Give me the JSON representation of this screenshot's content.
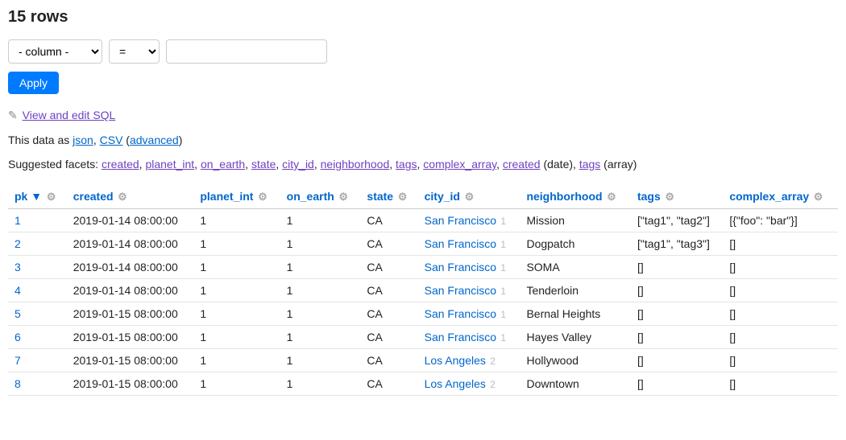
{
  "title": "15 rows",
  "filter": {
    "column_placeholder": "- column -",
    "operator": "=",
    "value": ""
  },
  "apply_label": "Apply",
  "sql_link": {
    "text": "View and edit SQL",
    "pencil": "✎"
  },
  "export": {
    "prefix": "This data as ",
    "json": "json",
    "csv": "CSV",
    "advanced": "advanced"
  },
  "facets": {
    "prefix": "Suggested facets: ",
    "items": [
      {
        "label": "created",
        "suffix": ""
      },
      {
        "label": "planet_int",
        "suffix": ""
      },
      {
        "label": "on_earth",
        "suffix": ""
      },
      {
        "label": "state",
        "suffix": ""
      },
      {
        "label": "city_id",
        "suffix": ""
      },
      {
        "label": "neighborhood",
        "suffix": ""
      },
      {
        "label": "tags",
        "suffix": ""
      },
      {
        "label": "complex_array",
        "suffix": ""
      },
      {
        "label": "created",
        "suffix": " (date)"
      },
      {
        "label": "tags",
        "suffix": " (array)"
      }
    ]
  },
  "columns": [
    {
      "name": "pk",
      "sorted": true
    },
    {
      "name": "created"
    },
    {
      "name": "planet_int"
    },
    {
      "name": "on_earth"
    },
    {
      "name": "state"
    },
    {
      "name": "city_id"
    },
    {
      "name": "neighborhood"
    },
    {
      "name": "tags"
    },
    {
      "name": "complex_array"
    }
  ],
  "rows": [
    {
      "pk": "1",
      "created": "2019-01-14 08:00:00",
      "planet_int": "1",
      "on_earth": "1",
      "state": "CA",
      "city_label": "San Francisco",
      "city_id": "1",
      "neighborhood": "Mission",
      "tags": "[\"tag1\", \"tag2\"]",
      "complex_array": "[{\"foo\": \"bar\"}]"
    },
    {
      "pk": "2",
      "created": "2019-01-14 08:00:00",
      "planet_int": "1",
      "on_earth": "1",
      "state": "CA",
      "city_label": "San Francisco",
      "city_id": "1",
      "neighborhood": "Dogpatch",
      "tags": "[\"tag1\", \"tag3\"]",
      "complex_array": "[]"
    },
    {
      "pk": "3",
      "created": "2019-01-14 08:00:00",
      "planet_int": "1",
      "on_earth": "1",
      "state": "CA",
      "city_label": "San Francisco",
      "city_id": "1",
      "neighborhood": "SOMA",
      "tags": "[]",
      "complex_array": "[]"
    },
    {
      "pk": "4",
      "created": "2019-01-14 08:00:00",
      "planet_int": "1",
      "on_earth": "1",
      "state": "CA",
      "city_label": "San Francisco",
      "city_id": "1",
      "neighborhood": "Tenderloin",
      "tags": "[]",
      "complex_array": "[]"
    },
    {
      "pk": "5",
      "created": "2019-01-15 08:00:00",
      "planet_int": "1",
      "on_earth": "1",
      "state": "CA",
      "city_label": "San Francisco",
      "city_id": "1",
      "neighborhood": "Bernal Heights",
      "tags": "[]",
      "complex_array": "[]"
    },
    {
      "pk": "6",
      "created": "2019-01-15 08:00:00",
      "planet_int": "1",
      "on_earth": "1",
      "state": "CA",
      "city_label": "San Francisco",
      "city_id": "1",
      "neighborhood": "Hayes Valley",
      "tags": "[]",
      "complex_array": "[]"
    },
    {
      "pk": "7",
      "created": "2019-01-15 08:00:00",
      "planet_int": "1",
      "on_earth": "1",
      "state": "CA",
      "city_label": "Los Angeles",
      "city_id": "2",
      "neighborhood": "Hollywood",
      "tags": "[]",
      "complex_array": "[]"
    },
    {
      "pk": "8",
      "created": "2019-01-15 08:00:00",
      "planet_int": "1",
      "on_earth": "1",
      "state": "CA",
      "city_label": "Los Angeles",
      "city_id": "2",
      "neighborhood": "Downtown",
      "tags": "[]",
      "complex_array": "[]"
    }
  ],
  "colors": {
    "link_blue": "#0066cc",
    "link_purple": "#6f42c1",
    "button_bg": "#007bff",
    "border": "#cccccc",
    "row_border": "#e4e4e4",
    "muted": "#bbbbbb"
  }
}
